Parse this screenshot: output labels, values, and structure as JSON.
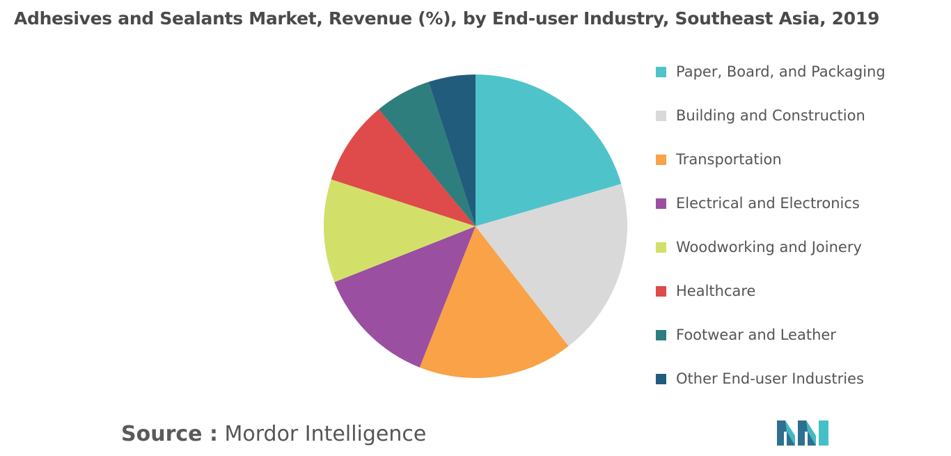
{
  "chart_data": {
    "type": "pie",
    "title": "Adhesives and Sealants Market, Revenue (%), by End-user Industry, Southeast Asia, 2019",
    "categories": [
      "Paper, Board, and Packaging",
      "Building and Construction",
      "Transportation",
      "Electrical and Electronics",
      "Woodworking and Joinery",
      "Healthcare",
      "Footwear and Leather",
      "Other End-user Industries"
    ],
    "values": [
      20.5,
      19.0,
      16.5,
      13.0,
      11.0,
      9.0,
      6.0,
      5.0
    ],
    "colors": [
      "#4fc3ca",
      "#d9d9d9",
      "#f9a248",
      "#9a4fa0",
      "#d2e06a",
      "#df4a4a",
      "#2e7e7e",
      "#225c7c"
    ],
    "legend_position": "right",
    "start_angle_deg": 0,
    "direction": "clockwise"
  },
  "source": {
    "prefix": "Source :",
    "text": " Mordor Intelligence"
  },
  "logo": {
    "icon": "mordor-intelligence-logo-icon",
    "colors": [
      "#2f6f8f",
      "#44c1c8"
    ]
  }
}
